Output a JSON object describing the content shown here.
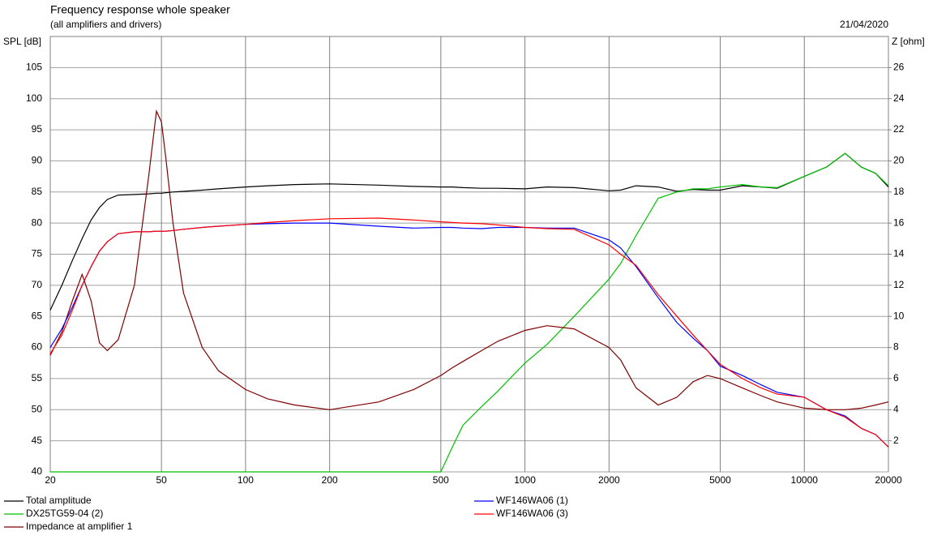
{
  "chart_data": {
    "type": "line",
    "title": "Frequency response whole speaker",
    "subtitle": "(all amplifiers and drivers)",
    "date": "21/04/2020",
    "ylabel": "SPL [dB]",
    "y2label": "Z [ohm]",
    "xscale": "log",
    "grid": true,
    "legend": "bottom",
    "xlim": [
      20,
      20000
    ],
    "xticks": [
      20,
      50,
      100,
      200,
      500,
      1000,
      2000,
      5000,
      10000,
      20000
    ],
    "ylim": [
      40,
      110
    ],
    "yticks": [
      40,
      45,
      50,
      55,
      60,
      65,
      70,
      75,
      80,
      85,
      90,
      95,
      100,
      105
    ],
    "y2lim": [
      0,
      28
    ],
    "y2ticks": [
      2,
      4,
      6,
      8,
      10,
      12,
      14,
      16,
      18,
      20,
      22,
      24,
      26
    ],
    "x": [
      20,
      22,
      24,
      26,
      28,
      30,
      32,
      35,
      40,
      45,
      48,
      50,
      52,
      55,
      60,
      70,
      80,
      100,
      120,
      150,
      200,
      300,
      400,
      500,
      550,
      600,
      700,
      800,
      1000,
      1200,
      1500,
      2000,
      2200,
      2500,
      3000,
      3500,
      4000,
      4500,
      5000,
      6000,
      7000,
      8000,
      10000,
      12000,
      14000,
      16000,
      18000,
      20000
    ],
    "series": [
      {
        "name": "Total amplitude",
        "color": "#000000",
        "values": [
          66,
          70,
          74,
          77.5,
          80.5,
          82.5,
          83.8,
          84.5,
          84.6,
          84.7,
          84.8,
          84.8,
          84.9,
          85,
          85.1,
          85.3,
          85.5,
          85.8,
          86,
          86.2,
          86.3,
          86.1,
          85.9,
          85.8,
          85.8,
          85.7,
          85.6,
          85.6,
          85.5,
          85.8,
          85.7,
          85.2,
          85.3,
          86,
          85.8,
          85.1,
          85.4,
          85.3,
          85.3,
          86,
          85.8,
          85.6,
          87.5,
          89,
          91.2,
          89,
          88,
          85.8
        ]
      },
      {
        "name": "DX25TG59-04 (2)",
        "color": "#00c000",
        "values": [
          40,
          40,
          40,
          40,
          40,
          40,
          40,
          40,
          40,
          40,
          40,
          40,
          40,
          40,
          40,
          40,
          40,
          40,
          40,
          40,
          40,
          40,
          40,
          40,
          44,
          47.5,
          50.5,
          53,
          57.5,
          60.5,
          65,
          71,
          73.5,
          78,
          84,
          85,
          85.5,
          85.5,
          85.8,
          86.2,
          85.8,
          85.7,
          87.5,
          89,
          91.2,
          89,
          88,
          86
        ]
      },
      {
        "name": "Impedance at amplifier 1",
        "color": "#800000",
        "axis": "y2",
        "values": [
          7.5,
          9,
          11,
          12.7,
          11,
          8.3,
          7.8,
          8.5,
          12,
          19,
          23.2,
          22.5,
          20,
          16,
          11.5,
          8,
          6.5,
          5.3,
          4.7,
          4.3,
          4,
          4.5,
          5.3,
          6.2,
          6.7,
          7.1,
          7.8,
          8.4,
          9.1,
          9.4,
          9.2,
          8,
          7.2,
          5.4,
          4.3,
          4.8,
          5.8,
          6.2,
          6,
          5.4,
          4.9,
          4.5,
          4.1,
          4,
          4,
          4.1,
          4.3,
          4.5
        ]
      },
      {
        "name": "WF146WA06 (1)",
        "color": "#0000ff",
        "values": [
          60,
          63,
          66.5,
          70,
          73,
          75.5,
          77,
          78.3,
          78.6,
          78.6,
          78.7,
          78.7,
          78.7,
          78.8,
          79,
          79.3,
          79.5,
          79.8,
          79.9,
          80,
          80,
          79.5,
          79.2,
          79.3,
          79.3,
          79.2,
          79.1,
          79.3,
          79.3,
          79.2,
          79.2,
          77.3,
          76,
          73,
          68,
          64,
          61.5,
          59.5,
          57,
          55.5,
          54,
          52.8,
          52,
          50,
          49,
          47,
          46,
          44
        ]
      },
      {
        "name": "WF146WA06 (3)",
        "color": "#ff0000",
        "values": [
          59,
          62,
          66,
          70,
          73,
          75.5,
          77,
          78.3,
          78.6,
          78.6,
          78.7,
          78.7,
          78.7,
          78.8,
          79,
          79.3,
          79.5,
          79.8,
          80.1,
          80.4,
          80.7,
          80.8,
          80.5,
          80.2,
          80.1,
          80,
          79.9,
          79.7,
          79.3,
          79.1,
          79,
          76.5,
          75,
          73.2,
          68.5,
          65,
          62,
          59.5,
          57.3,
          55,
          53.5,
          52.5,
          52,
          50,
          48.8,
          47,
          46,
          44
        ]
      }
    ]
  }
}
